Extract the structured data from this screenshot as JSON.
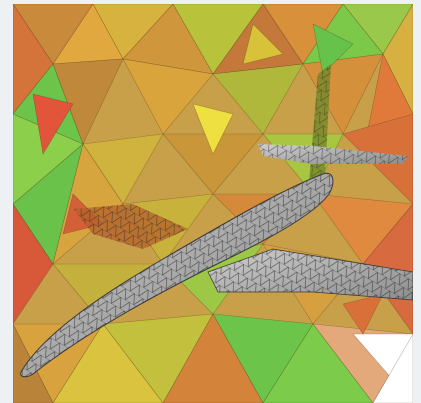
{
  "scene": {
    "subject": "aircraft-surface-mesh",
    "background_mesh": "tetrahedral-volume-mesh",
    "colors": {
      "frame_bg": "#eef1f4",
      "mesh_green": "#6cc54a",
      "mesh_yellow": "#d8c23a",
      "mesh_orange": "#d9872f",
      "mesh_red": "#d6553a",
      "surface_light": "#c9c9c9",
      "surface_dark": "#8a8a8a",
      "mesh_line": "#2a2a2a"
    }
  }
}
